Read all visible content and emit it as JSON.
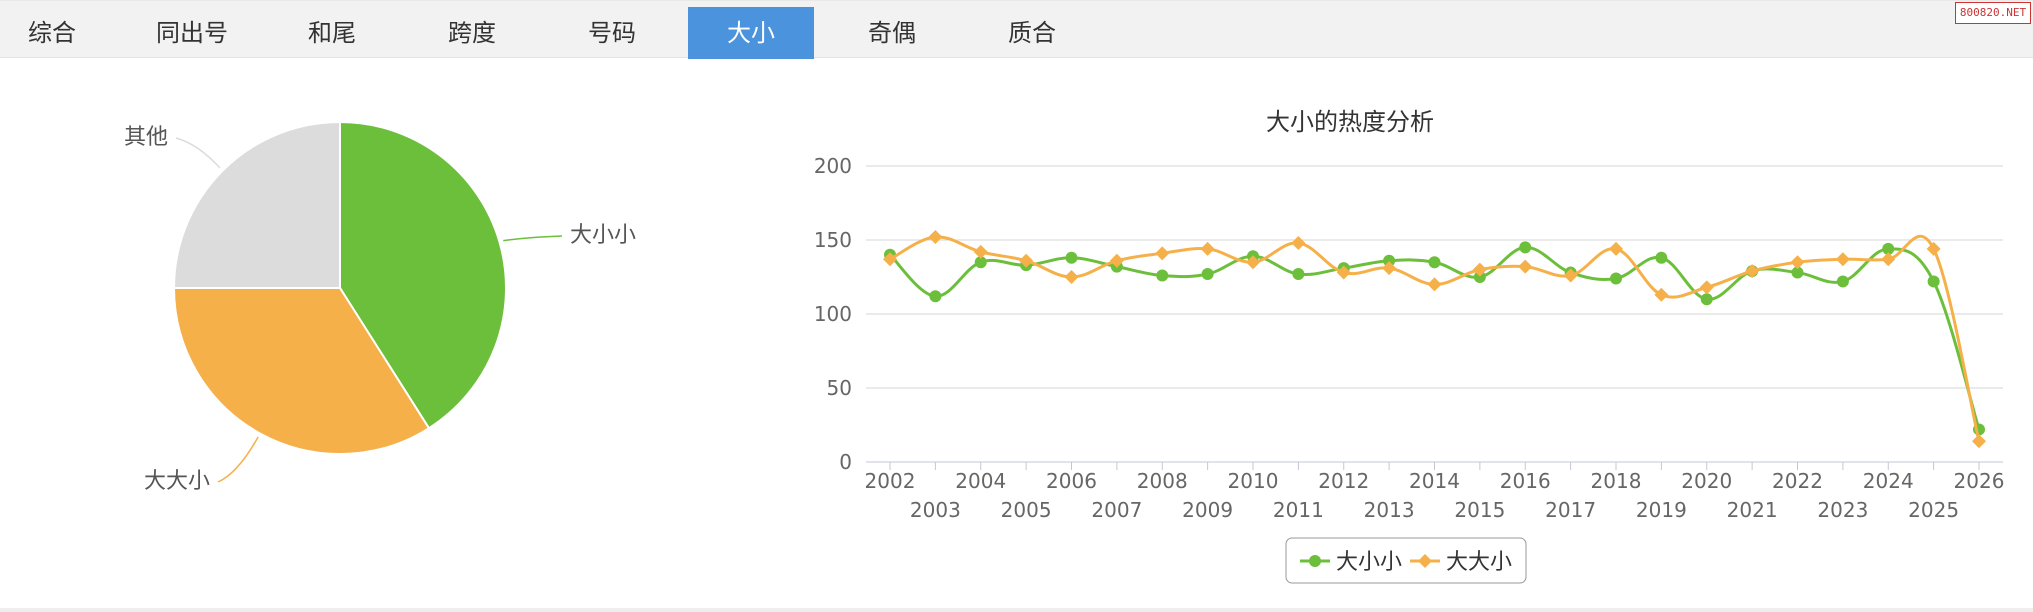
{
  "tabs": [
    {
      "label": "综合",
      "active": false
    },
    {
      "label": "同出号",
      "active": false
    },
    {
      "label": "和尾",
      "active": false
    },
    {
      "label": "跨度",
      "active": false
    },
    {
      "label": "号码",
      "active": false
    },
    {
      "label": "大小",
      "active": true
    },
    {
      "label": "奇偶",
      "active": false
    },
    {
      "label": "质合",
      "active": false
    }
  ],
  "watermark": "800820.NET",
  "colors": {
    "green": "#6cbf3b",
    "orange": "#f5b04a",
    "gray": "#dcdcdc",
    "tab_active": "#4b93dc"
  },
  "chart_data": [
    {
      "type": "pie",
      "title": "",
      "slices": [
        {
          "label": "大小小",
          "value": 41,
          "color": "#6cbf3b"
        },
        {
          "label": "大大小",
          "value": 34,
          "color": "#f5b04a"
        },
        {
          "label": "其他",
          "value": 25,
          "color": "#dcdcdc"
        }
      ]
    },
    {
      "type": "line",
      "title": "大小的热度分析",
      "xlabel": "",
      "ylabel": "",
      "ylim": [
        0,
        200
      ],
      "yticks": [
        0,
        50,
        100,
        150,
        200
      ],
      "grid": true,
      "legend": "bottom-center",
      "x": [
        "2002",
        "2003",
        "2004",
        "2005",
        "2006",
        "2007",
        "2008",
        "2009",
        "2010",
        "2011",
        "2012",
        "2013",
        "2014",
        "2015",
        "2016",
        "2017",
        "2018",
        "2019",
        "2020",
        "2021",
        "2022",
        "2023",
        "2024",
        "2025",
        "2026"
      ],
      "series": [
        {
          "name": "大小小",
          "color": "#6cbf3b",
          "marker": "circle",
          "values": [
            140,
            112,
            135,
            133,
            138,
            132,
            126,
            127,
            139,
            127,
            131,
            136,
            135,
            125,
            145,
            128,
            124,
            138,
            110,
            129,
            128,
            122,
            144,
            122,
            22
          ]
        },
        {
          "name": "大大小",
          "color": "#f5b04a",
          "marker": "diamond",
          "values": [
            137,
            152,
            142,
            136,
            125,
            136,
            141,
            144,
            135,
            148,
            128,
            131,
            120,
            130,
            132,
            126,
            144,
            113,
            118,
            129,
            135,
            137,
            137,
            144,
            14
          ]
        }
      ]
    }
  ]
}
